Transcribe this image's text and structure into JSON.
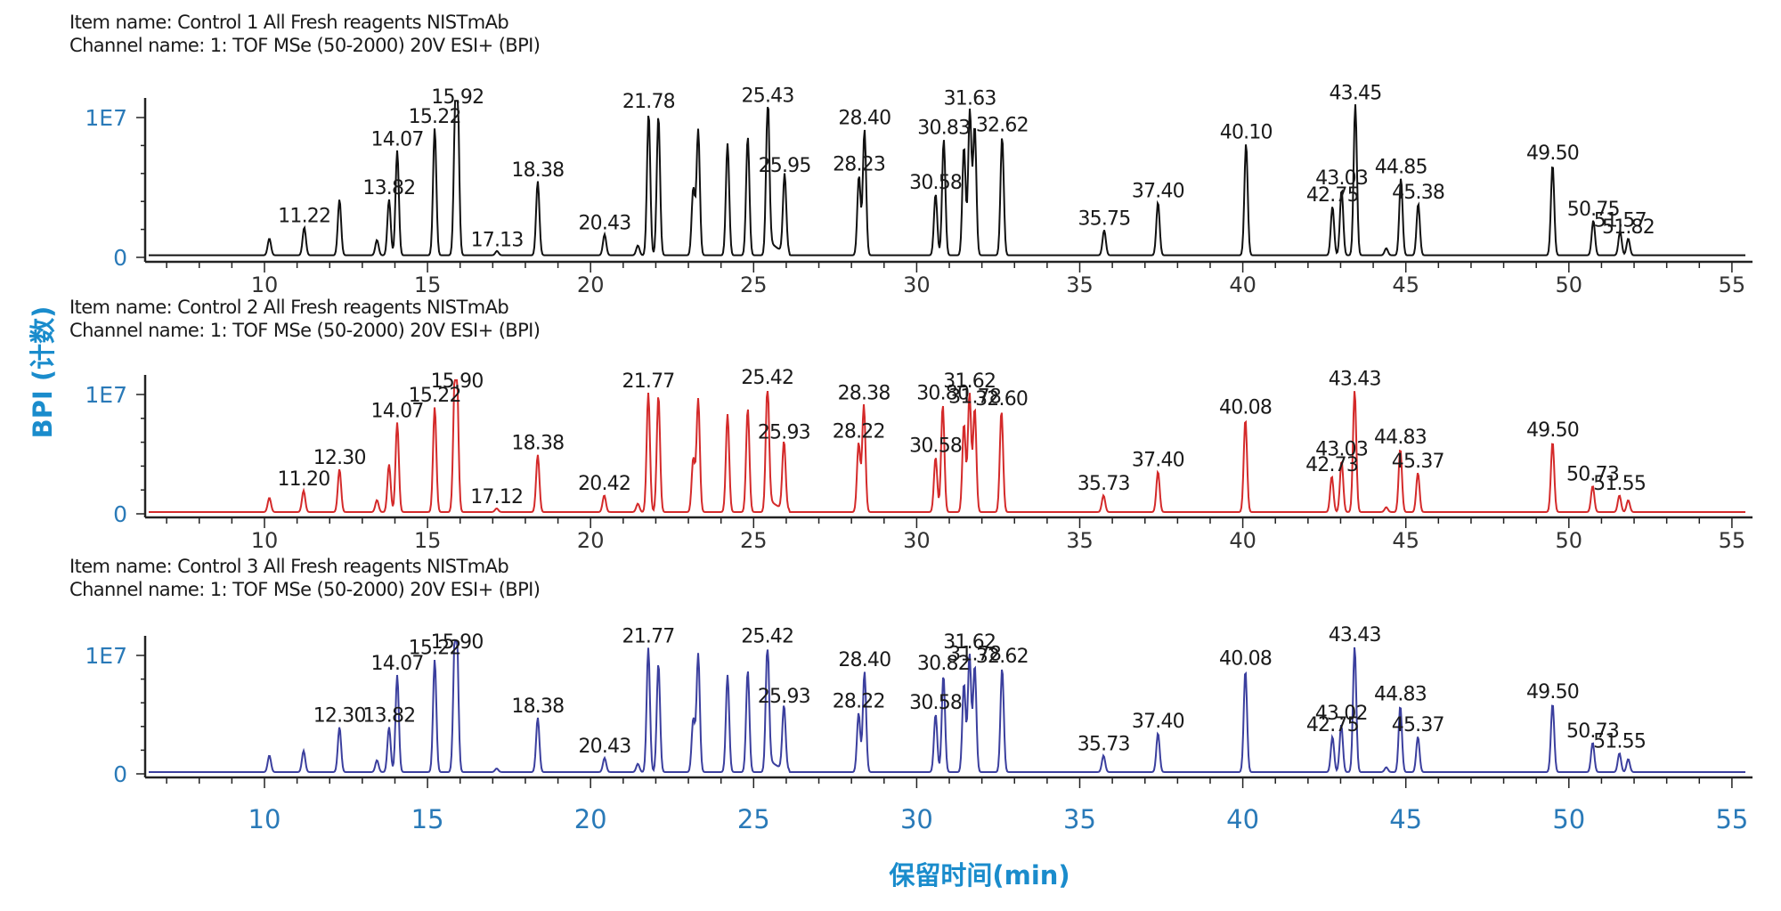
{
  "chart_data": {
    "type": "line",
    "title": "",
    "xlabel": "保留时间(min)",
    "ylabel": "BPI (计数)",
    "xlim": [
      6.3,
      55.6
    ],
    "x_ticks": [
      10,
      15,
      20,
      25,
      30,
      35,
      40,
      45,
      50,
      55
    ],
    "y_ticks": [
      {
        "value": 0,
        "label": "0"
      },
      {
        "value": 1,
        "label": "1E7"
      }
    ],
    "y_unit": "1E7 counts",
    "grid": false,
    "legend": "none",
    "panels": [
      {
        "item_name": "Item name: Control 1 All Fresh reagents NISTmAb",
        "channel_name": "Channel name: 1: TOF MSe (50-2000) 20V ESI+ (BPI)",
        "color": "#111111",
        "peaks": [
          {
            "rt": 10.15,
            "h": 0.12
          },
          {
            "rt": 11.22,
            "h": 0.2
          },
          {
            "rt": 12.3,
            "h": 0.4
          },
          {
            "rt": 13.45,
            "h": 0.11
          },
          {
            "rt": 13.82,
            "h": 0.4
          },
          {
            "rt": 14.07,
            "h": 0.75
          },
          {
            "rt": 15.22,
            "h": 0.91
          },
          {
            "rt": 15.85,
            "h": 0.85
          },
          {
            "rt": 15.92,
            "h": 1.05
          },
          {
            "rt": 17.13,
            "h": 0.03
          },
          {
            "rt": 18.38,
            "h": 0.53
          },
          {
            "rt": 20.43,
            "h": 0.15
          },
          {
            "rt": 21.45,
            "h": 0.07
          },
          {
            "rt": 21.78,
            "h": 1.02
          },
          {
            "rt": 22.08,
            "h": 1.0
          },
          {
            "rt": 23.15,
            "h": 0.48
          },
          {
            "rt": 23.3,
            "h": 0.9
          },
          {
            "rt": 24.2,
            "h": 0.8
          },
          {
            "rt": 24.82,
            "h": 0.85
          },
          {
            "rt": 25.43,
            "h": 1.06
          },
          {
            "rt": 25.95,
            "h": 0.56
          },
          {
            "rt": 28.23,
            "h": 0.57
          },
          {
            "rt": 28.4,
            "h": 0.9
          },
          {
            "rt": 30.58,
            "h": 0.44
          },
          {
            "rt": 30.83,
            "h": 0.83
          },
          {
            "rt": 31.45,
            "h": 0.78
          },
          {
            "rt": 31.63,
            "h": 1.04
          },
          {
            "rt": 31.78,
            "h": 0.92
          },
          {
            "rt": 32.62,
            "h": 0.85
          },
          {
            "rt": 35.75,
            "h": 0.18
          },
          {
            "rt": 37.4,
            "h": 0.38
          },
          {
            "rt": 40.1,
            "h": 0.8
          },
          {
            "rt": 42.75,
            "h": 0.35
          },
          {
            "rt": 43.03,
            "h": 0.47
          },
          {
            "rt": 43.45,
            "h": 1.08
          },
          {
            "rt": 44.4,
            "h": 0.05
          },
          {
            "rt": 44.85,
            "h": 0.55
          },
          {
            "rt": 45.38,
            "h": 0.37
          },
          {
            "rt": 49.5,
            "h": 0.65
          },
          {
            "rt": 50.75,
            "h": 0.25
          },
          {
            "rt": 51.57,
            "h": 0.17
          },
          {
            "rt": 51.82,
            "h": 0.12
          }
        ],
        "labels": [
          {
            "text": "11.22",
            "rt": 11.22
          },
          {
            "text": "13.82",
            "rt": 13.82
          },
          {
            "text": "14.07",
            "rt": 14.07
          },
          {
            "text": "15.22",
            "rt": 15.22
          },
          {
            "text": "15.92",
            "rt": 15.92
          },
          {
            "text": "17.13",
            "rt": 17.13
          },
          {
            "text": "18.38",
            "rt": 18.38
          },
          {
            "text": "20.43",
            "rt": 20.43
          },
          {
            "text": "21.78",
            "rt": 21.78
          },
          {
            "text": "25.43",
            "rt": 25.43
          },
          {
            "text": "25.95",
            "rt": 25.95
          },
          {
            "text": "28.23",
            "rt": 28.23
          },
          {
            "text": "28.40",
            "rt": 28.4
          },
          {
            "text": "30.58",
            "rt": 30.58
          },
          {
            "text": "30.83",
            "rt": 30.83
          },
          {
            "text": "31.63",
            "rt": 31.63
          },
          {
            "text": "32.62",
            "rt": 32.62
          },
          {
            "text": "35.75",
            "rt": 35.75
          },
          {
            "text": "37.40",
            "rt": 37.4
          },
          {
            "text": "40.10",
            "rt": 40.1
          },
          {
            "text": "42.75",
            "rt": 42.75
          },
          {
            "text": "43.03",
            "rt": 43.03
          },
          {
            "text": "43.45",
            "rt": 43.45
          },
          {
            "text": "44.85",
            "rt": 44.85
          },
          {
            "text": "45.38",
            "rt": 45.38
          },
          {
            "text": "49.50",
            "rt": 49.5
          },
          {
            "text": "50.75",
            "rt": 50.75
          },
          {
            "text": "51.57",
            "rt": 51.57
          },
          {
            "text": "51.82",
            "rt": 51.82
          }
        ]
      },
      {
        "item_name": "Item name: Control 2 All Fresh reagents NISTmAb",
        "channel_name": "Channel name: 1: TOF MSe (50-2000) 20V ESI+ (BPI)",
        "color": "#d42a2a",
        "peaks": [
          {
            "rt": 10.15,
            "h": 0.12
          },
          {
            "rt": 11.2,
            "h": 0.18
          },
          {
            "rt": 12.3,
            "h": 0.36
          },
          {
            "rt": 13.45,
            "h": 0.1
          },
          {
            "rt": 13.82,
            "h": 0.4
          },
          {
            "rt": 14.07,
            "h": 0.75
          },
          {
            "rt": 15.22,
            "h": 0.88
          },
          {
            "rt": 15.83,
            "h": 0.85
          },
          {
            "rt": 15.9,
            "h": 1.0
          },
          {
            "rt": 17.12,
            "h": 0.03
          },
          {
            "rt": 18.38,
            "h": 0.48
          },
          {
            "rt": 20.42,
            "h": 0.14
          },
          {
            "rt": 21.45,
            "h": 0.07
          },
          {
            "rt": 21.77,
            "h": 1.0
          },
          {
            "rt": 22.08,
            "h": 0.98
          },
          {
            "rt": 23.15,
            "h": 0.45
          },
          {
            "rt": 23.3,
            "h": 0.95
          },
          {
            "rt": 24.2,
            "h": 0.82
          },
          {
            "rt": 24.82,
            "h": 0.87
          },
          {
            "rt": 25.42,
            "h": 1.03
          },
          {
            "rt": 25.93,
            "h": 0.57
          },
          {
            "rt": 28.22,
            "h": 0.58
          },
          {
            "rt": 28.38,
            "h": 0.9
          },
          {
            "rt": 30.58,
            "h": 0.46
          },
          {
            "rt": 30.8,
            "h": 0.9
          },
          {
            "rt": 31.45,
            "h": 0.74
          },
          {
            "rt": 31.62,
            "h": 1.0
          },
          {
            "rt": 31.78,
            "h": 0.87
          },
          {
            "rt": 32.6,
            "h": 0.85
          },
          {
            "rt": 35.73,
            "h": 0.14
          },
          {
            "rt": 37.4,
            "h": 0.34
          },
          {
            "rt": 40.08,
            "h": 0.78
          },
          {
            "rt": 42.73,
            "h": 0.3
          },
          {
            "rt": 43.03,
            "h": 0.43
          },
          {
            "rt": 43.43,
            "h": 1.02
          },
          {
            "rt": 44.4,
            "h": 0.04
          },
          {
            "rt": 44.83,
            "h": 0.53
          },
          {
            "rt": 45.37,
            "h": 0.33
          },
          {
            "rt": 49.5,
            "h": 0.59
          },
          {
            "rt": 50.73,
            "h": 0.22
          },
          {
            "rt": 51.55,
            "h": 0.14
          },
          {
            "rt": 51.82,
            "h": 0.1
          }
        ],
        "labels": [
          {
            "text": "11.20",
            "rt": 11.2
          },
          {
            "text": "12.30",
            "rt": 12.3
          },
          {
            "text": "14.07",
            "rt": 14.07
          },
          {
            "text": "15.22",
            "rt": 15.22
          },
          {
            "text": "15.90",
            "rt": 15.9
          },
          {
            "text": "17.12",
            "rt": 17.12
          },
          {
            "text": "18.38",
            "rt": 18.38
          },
          {
            "text": "20.42",
            "rt": 20.42
          },
          {
            "text": "21.77",
            "rt": 21.77
          },
          {
            "text": "25.42",
            "rt": 25.42
          },
          {
            "text": "25.93",
            "rt": 25.93
          },
          {
            "text": "28.22",
            "rt": 28.22
          },
          {
            "text": "28.38",
            "rt": 28.38
          },
          {
            "text": "30.58",
            "rt": 30.58
          },
          {
            "text": "30.80",
            "rt": 30.8
          },
          {
            "text": "31.62",
            "rt": 31.62
          },
          {
            "text": "32.60",
            "rt": 32.6
          },
          {
            "text": "31.78",
            "rt": 31.78
          },
          {
            "text": "35.73",
            "rt": 35.73
          },
          {
            "text": "37.40",
            "rt": 37.4
          },
          {
            "text": "40.08",
            "rt": 40.08
          },
          {
            "text": "42.73",
            "rt": 42.73
          },
          {
            "text": "43.03",
            "rt": 43.03
          },
          {
            "text": "43.43",
            "rt": 43.43
          },
          {
            "text": "44.83",
            "rt": 44.83
          },
          {
            "text": "45.37",
            "rt": 45.37
          },
          {
            "text": "49.50",
            "rt": 49.5
          },
          {
            "text": "50.73",
            "rt": 50.73
          },
          {
            "text": "51.55",
            "rt": 51.55
          }
        ]
      },
      {
        "item_name": "Item name: Control 3 All Fresh reagents NISTmAb",
        "channel_name": "Channel name: 1: TOF MSe (50-2000) 20V ESI+ (BPI)",
        "color": "#3b3f9e",
        "peaks": [
          {
            "rt": 10.15,
            "h": 0.14
          },
          {
            "rt": 11.2,
            "h": 0.18
          },
          {
            "rt": 12.3,
            "h": 0.38
          },
          {
            "rt": 13.45,
            "h": 0.1
          },
          {
            "rt": 13.82,
            "h": 0.38
          },
          {
            "rt": 14.07,
            "h": 0.82
          },
          {
            "rt": 15.22,
            "h": 0.95
          },
          {
            "rt": 15.83,
            "h": 0.85
          },
          {
            "rt": 15.9,
            "h": 1.0
          },
          {
            "rt": 17.12,
            "h": 0.03
          },
          {
            "rt": 18.38,
            "h": 0.46
          },
          {
            "rt": 20.43,
            "h": 0.12
          },
          {
            "rt": 21.45,
            "h": 0.07
          },
          {
            "rt": 21.77,
            "h": 1.05
          },
          {
            "rt": 22.08,
            "h": 0.92
          },
          {
            "rt": 23.15,
            "h": 0.45
          },
          {
            "rt": 23.3,
            "h": 1.0
          },
          {
            "rt": 24.2,
            "h": 0.82
          },
          {
            "rt": 24.82,
            "h": 0.86
          },
          {
            "rt": 25.42,
            "h": 1.05
          },
          {
            "rt": 25.93,
            "h": 0.54
          },
          {
            "rt": 28.22,
            "h": 0.5
          },
          {
            "rt": 28.4,
            "h": 0.85
          },
          {
            "rt": 30.58,
            "h": 0.49
          },
          {
            "rt": 30.82,
            "h": 0.82
          },
          {
            "rt": 31.45,
            "h": 0.75
          },
          {
            "rt": 31.62,
            "h": 1.0
          },
          {
            "rt": 31.78,
            "h": 0.9
          },
          {
            "rt": 32.62,
            "h": 0.88
          },
          {
            "rt": 35.73,
            "h": 0.14
          },
          {
            "rt": 37.4,
            "h": 0.33
          },
          {
            "rt": 40.08,
            "h": 0.86
          },
          {
            "rt": 42.75,
            "h": 0.3
          },
          {
            "rt": 43.02,
            "h": 0.4
          },
          {
            "rt": 43.43,
            "h": 1.06
          },
          {
            "rt": 44.4,
            "h": 0.04
          },
          {
            "rt": 44.83,
            "h": 0.56
          },
          {
            "rt": 45.37,
            "h": 0.3
          },
          {
            "rt": 49.5,
            "h": 0.58
          },
          {
            "rt": 50.73,
            "h": 0.25
          },
          {
            "rt": 51.55,
            "h": 0.16
          },
          {
            "rt": 51.82,
            "h": 0.11
          }
        ],
        "labels": [
          {
            "text": "12.30",
            "rt": 12.3
          },
          {
            "text": "13.82",
            "rt": 13.82
          },
          {
            "text": "14.07",
            "rt": 14.07
          },
          {
            "text": "15.22",
            "rt": 15.22
          },
          {
            "text": "15.90",
            "rt": 15.9
          },
          {
            "text": "18.38",
            "rt": 18.38
          },
          {
            "text": "20.43",
            "rt": 20.43
          },
          {
            "text": "21.77",
            "rt": 21.77
          },
          {
            "text": "25.42",
            "rt": 25.42
          },
          {
            "text": "25.93",
            "rt": 25.93
          },
          {
            "text": "28.22",
            "rt": 28.22
          },
          {
            "text": "28.40",
            "rt": 28.4
          },
          {
            "text": "30.58",
            "rt": 30.58
          },
          {
            "text": "30.82",
            "rt": 30.82
          },
          {
            "text": "31.62",
            "rt": 31.62
          },
          {
            "text": "32.62",
            "rt": 32.62
          },
          {
            "text": "31.78",
            "rt": 31.78
          },
          {
            "text": "35.73",
            "rt": 35.73
          },
          {
            "text": "37.40",
            "rt": 37.4
          },
          {
            "text": "40.08",
            "rt": 40.08
          },
          {
            "text": "42.75",
            "rt": 42.75
          },
          {
            "text": "43.02",
            "rt": 43.02
          },
          {
            "text": "43.43",
            "rt": 43.43
          },
          {
            "text": "44.83",
            "rt": 44.83
          },
          {
            "text": "45.37",
            "rt": 45.37
          },
          {
            "text": "49.50",
            "rt": 49.5
          },
          {
            "text": "50.73",
            "rt": 50.73
          },
          {
            "text": "51.55",
            "rt": 51.55
          }
        ]
      }
    ]
  }
}
